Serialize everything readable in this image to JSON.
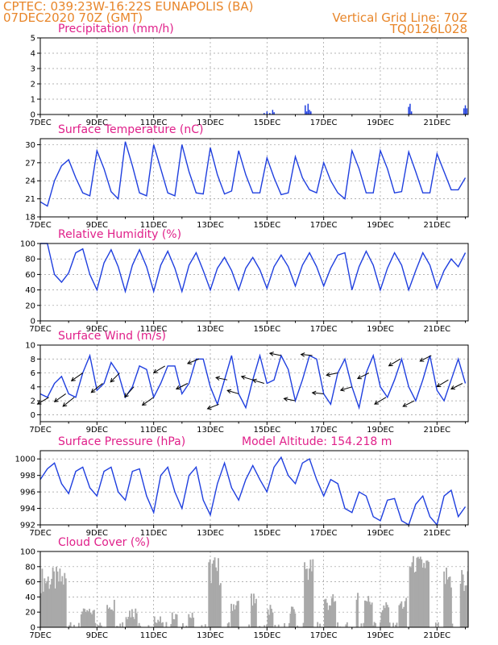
{
  "header": {
    "line1_left": "CPTEC:   039:23W-16:22S   EUNAPOLIS (BA)",
    "line2_left": "07DEC2020 70Z (GMT)",
    "line1_right": "Vertical Grid Line: 70Z",
    "line2_right": "TQ0126L028"
  },
  "colors": {
    "series": "#1f3fdf",
    "title": "#e0208a",
    "header": "#e8862a",
    "cloud": "#a9a9a9",
    "arrow": "#000000"
  },
  "x_ticks": [
    "7DEC",
    "9DEC",
    "11DEC",
    "13DEC",
    "15DEC",
    "17DEC",
    "19DEC",
    "21DEC"
  ],
  "x_tick_days": [
    7,
    9,
    11,
    13,
    15,
    17,
    19,
    21
  ],
  "x_range": [
    7,
    22.1
  ],
  "chart_data": [
    {
      "type": "bar",
      "title": "Precipitation (mm/h)",
      "ylim": [
        0,
        5
      ],
      "yticks": [
        0,
        1,
        2,
        3,
        4,
        5
      ],
      "x": [
        14.9,
        15.0,
        15.1,
        15.2,
        15.25,
        16.35,
        16.4,
        16.45,
        16.5,
        16.55,
        20.0,
        20.05,
        20.1,
        21.95,
        22.0,
        22.05
      ],
      "values": [
        0.1,
        0.2,
        0.1,
        0.3,
        0.15,
        0.6,
        0.2,
        0.7,
        0.3,
        0.2,
        0.5,
        0.7,
        0.2,
        0.4,
        0.6,
        0.4
      ]
    },
    {
      "type": "line",
      "title": "Surface Temperature (nC)",
      "ylim": [
        18,
        31
      ],
      "yticks": [
        18,
        21,
        24,
        27,
        30
      ],
      "x": [
        7.0,
        7.25,
        7.5,
        7.75,
        8.0,
        8.25,
        8.5,
        8.75,
        9.0,
        9.25,
        9.5,
        9.75,
        10.0,
        10.25,
        10.5,
        10.75,
        11.0,
        11.25,
        11.5,
        11.75,
        12.0,
        12.25,
        12.5,
        12.75,
        13.0,
        13.25,
        13.5,
        13.75,
        14.0,
        14.25,
        14.5,
        14.75,
        15.0,
        15.25,
        15.5,
        15.75,
        16.0,
        16.25,
        16.5,
        16.75,
        17.0,
        17.25,
        17.5,
        17.75,
        18.0,
        18.25,
        18.5,
        18.75,
        19.0,
        19.25,
        19.5,
        19.75,
        20.0,
        20.25,
        20.5,
        20.75,
        21.0,
        21.25,
        21.5,
        21.75,
        22.0
      ],
      "values": [
        20.5,
        19.8,
        24.0,
        26.5,
        27.5,
        24.5,
        22.0,
        21.5,
        29.0,
        26.0,
        22.2,
        21.0,
        30.5,
        26.5,
        22.0,
        21.5,
        30.0,
        26.0,
        22.0,
        21.5,
        30.0,
        25.5,
        22.0,
        21.8,
        29.5,
        25.0,
        21.8,
        22.3,
        29.0,
        25.0,
        22.0,
        22.0,
        27.8,
        24.5,
        21.7,
        22.0,
        28.0,
        24.5,
        22.5,
        22.0,
        27.0,
        24.0,
        22.0,
        21.0,
        29.0,
        26.0,
        22.0,
        22.0,
        29.0,
        26.0,
        22.0,
        22.2,
        28.8,
        25.5,
        22.0,
        22.0,
        28.5,
        25.5,
        22.5,
        22.5,
        24.5
      ]
    },
    {
      "type": "line",
      "title": "Relative Humidity (%)",
      "ylim": [
        0,
        100
      ],
      "yticks": [
        0,
        20,
        40,
        60,
        80,
        100
      ],
      "x": [
        7.0,
        7.25,
        7.5,
        7.75,
        8.0,
        8.25,
        8.5,
        8.75,
        9.0,
        9.25,
        9.5,
        9.75,
        10.0,
        10.25,
        10.5,
        10.75,
        11.0,
        11.25,
        11.5,
        11.75,
        12.0,
        12.25,
        12.5,
        12.75,
        13.0,
        13.25,
        13.5,
        13.75,
        14.0,
        14.25,
        14.5,
        14.75,
        15.0,
        15.25,
        15.5,
        15.75,
        16.0,
        16.25,
        16.5,
        16.75,
        17.0,
        17.25,
        17.5,
        17.75,
        18.0,
        18.25,
        18.5,
        18.75,
        19.0,
        19.25,
        19.5,
        19.75,
        20.0,
        20.25,
        20.5,
        20.75,
        21.0,
        21.25,
        21.5,
        21.75,
        22.0
      ],
      "values": [
        100,
        100,
        60,
        50,
        62,
        88,
        93,
        60,
        40,
        75,
        92,
        70,
        38,
        72,
        92,
        70,
        38,
        72,
        90,
        68,
        38,
        72,
        88,
        65,
        40,
        68,
        82,
        65,
        40,
        68,
        82,
        66,
        42,
        70,
        85,
        70,
        45,
        72,
        88,
        70,
        45,
        68,
        85,
        88,
        40,
        70,
        90,
        72,
        40,
        68,
        88,
        72,
        40,
        65,
        88,
        72,
        42,
        65,
        80,
        70,
        88
      ]
    },
    {
      "type": "line",
      "title": "Surface Wind (m/s)",
      "ylim": [
        -1,
        10
      ],
      "yticks": [
        0,
        2,
        4,
        6,
        8,
        10
      ],
      "x": [
        7.0,
        7.25,
        7.5,
        7.75,
        8.0,
        8.25,
        8.5,
        8.75,
        9.0,
        9.25,
        9.5,
        9.75,
        10.0,
        10.25,
        10.5,
        10.75,
        11.0,
        11.25,
        11.5,
        11.75,
        12.0,
        12.25,
        12.5,
        12.75,
        13.0,
        13.25,
        13.5,
        13.75,
        14.0,
        14.25,
        14.5,
        14.75,
        15.0,
        15.25,
        15.5,
        15.75,
        16.0,
        16.25,
        16.5,
        16.75,
        17.0,
        17.25,
        17.5,
        17.75,
        18.0,
        18.25,
        18.5,
        18.75,
        19.0,
        19.25,
        19.5,
        19.75,
        20.0,
        20.25,
        20.5,
        20.75,
        21.0,
        21.25,
        21.5,
        21.75,
        22.0
      ],
      "values": [
        3.0,
        2.5,
        4.5,
        5.5,
        3.0,
        2.5,
        6.0,
        8.5,
        3.5,
        4.5,
        7.5,
        6.0,
        2.5,
        4.0,
        7.0,
        6.5,
        2.5,
        4.5,
        7.0,
        7.0,
        3.0,
        4.5,
        8.0,
        8.0,
        4.0,
        1.5,
        5.0,
        8.5,
        3.0,
        1.0,
        5.0,
        8.5,
        4.5,
        5.0,
        8.5,
        6.5,
        2.0,
        5.0,
        8.5,
        8.0,
        3.0,
        1.5,
        6.0,
        8.0,
        4.0,
        1.0,
        6.0,
        8.5,
        4.0,
        2.5,
        5.0,
        8.0,
        4.0,
        2.0,
        5.0,
        8.5,
        3.5,
        2.0,
        5.0,
        8.0,
        4.5
      ],
      "arrows_x": [
        7.3,
        7.9,
        8.2,
        8.5,
        9.2,
        9.8,
        10.3,
        11.0,
        11.4,
        12.2,
        12.6,
        13.3,
        13.6,
        14.0,
        14.5,
        14.9,
        15.5,
        16.0,
        16.6,
        17.0,
        17.5,
        18.0,
        18.6,
        19.2,
        19.7,
        20.2,
        20.8,
        21.4,
        21.9
      ],
      "arrows_dx": [
        -1,
        -1,
        -1,
        -1,
        -1,
        -0.8,
        -0.8,
        -1,
        -1,
        -1,
        -1,
        -1,
        -1,
        -1,
        -1,
        -1,
        -1,
        -1,
        -1,
        -1,
        -1,
        -1,
        -1,
        -1,
        -1,
        -1,
        -1,
        -1,
        -1
      ],
      "arrows_dy": [
        -0.6,
        -0.7,
        -0.8,
        -0.7,
        -0.8,
        -0.8,
        -0.9,
        -0.7,
        -0.6,
        -0.5,
        -0.4,
        -0.4,
        0.2,
        0.3,
        0.3,
        0.3,
        0.2,
        0.2,
        0.1,
        0.1,
        -0.2,
        -0.3,
        -0.5,
        -0.6,
        -0.6,
        -0.5,
        -0.5,
        -0.6,
        -0.5
      ]
    },
    {
      "type": "line",
      "title": "Surface Pressure (hPa)",
      "annotation": "Model Altitude: 154.218 m",
      "ylim": [
        992,
        1001
      ],
      "yticks": [
        992,
        994,
        996,
        998,
        1000
      ],
      "x": [
        7.0,
        7.25,
        7.5,
        7.75,
        8.0,
        8.25,
        8.5,
        8.75,
        9.0,
        9.25,
        9.5,
        9.75,
        10.0,
        10.25,
        10.5,
        10.75,
        11.0,
        11.25,
        11.5,
        11.75,
        12.0,
        12.25,
        12.5,
        12.75,
        13.0,
        13.25,
        13.5,
        13.75,
        14.0,
        14.25,
        14.5,
        14.75,
        15.0,
        15.25,
        15.5,
        15.75,
        16.0,
        16.25,
        16.5,
        16.75,
        17.0,
        17.25,
        17.5,
        17.75,
        18.0,
        18.25,
        18.5,
        18.75,
        19.0,
        19.25,
        19.5,
        19.75,
        20.0,
        20.25,
        20.5,
        20.75,
        21.0,
        21.25,
        21.5,
        21.75,
        22.0
      ],
      "values": [
        997.5,
        998.8,
        999.5,
        997.0,
        995.8,
        998.5,
        999.0,
        996.5,
        995.5,
        998.5,
        999.0,
        996.0,
        995.0,
        998.5,
        998.8,
        995.5,
        993.5,
        998.0,
        999.0,
        996.0,
        994.0,
        998.0,
        999.0,
        995.0,
        993.2,
        997.0,
        999.5,
        996.5,
        995.0,
        997.5,
        999.2,
        997.5,
        996.0,
        999.0,
        1000.2,
        998.0,
        997.0,
        999.5,
        1000.0,
        997.5,
        995.5,
        997.5,
        997.0,
        994.0,
        993.5,
        996.0,
        995.5,
        993.0,
        992.5,
        995.0,
        995.2,
        992.5,
        992.0,
        994.5,
        995.5,
        993.0,
        992.0,
        995.5,
        996.2,
        993.0,
        994.2
      ]
    },
    {
      "type": "bar",
      "title": "Cloud Cover (%)",
      "ylim": [
        0,
        100
      ],
      "yticks": [
        0,
        20,
        40,
        60,
        80,
        100
      ]
    }
  ]
}
